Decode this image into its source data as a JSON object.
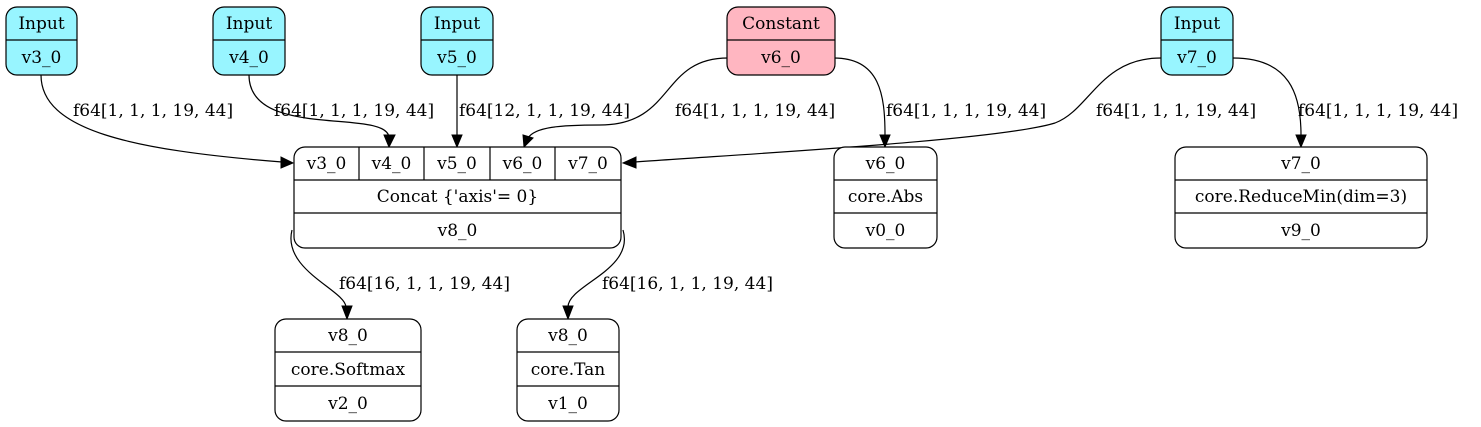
{
  "colors": {
    "input_fill": "#98f5ff",
    "constant_fill": "#ffb6c1",
    "op_fill": "#ffffff",
    "stroke": "#000000"
  },
  "inputs": {
    "v3": {
      "kind": "Input",
      "name": "v3_0"
    },
    "v4": {
      "kind": "Input",
      "name": "v4_0"
    },
    "v5": {
      "kind": "Input",
      "name": "v5_0"
    },
    "v6": {
      "kind": "Constant",
      "name": "v6_0"
    },
    "v7": {
      "kind": "Input",
      "name": "v7_0"
    }
  },
  "concat": {
    "ports": [
      "v3_0",
      "v4_0",
      "v5_0",
      "v6_0",
      "v7_0"
    ],
    "op": "Concat {'axis'= 0}",
    "out": "v8_0"
  },
  "abs": {
    "in": "v6_0",
    "op": "core.Abs",
    "out": "v0_0"
  },
  "reducemin": {
    "in": "v7_0",
    "op": "core.ReduceMin(dim=3)",
    "out": "v9_0"
  },
  "softmax": {
    "in": "v8_0",
    "op": "core.Softmax",
    "out": "v2_0"
  },
  "tan": {
    "in": "v8_0",
    "op": "core.Tan",
    "out": "v1_0"
  },
  "edge_labels": {
    "v3_concat": "f64[1, 1, 1, 19, 44]",
    "v4_concat": "f64[1, 1, 1, 19, 44]",
    "v5_concat": "f64[12, 1, 1, 19, 44]",
    "v6_concat": "f64[1, 1, 1, 19, 44]",
    "v6_abs": "f64[1, 1, 1, 19, 44]",
    "v7_concat": "f64[1, 1, 1, 19, 44]",
    "v7_reducemin": "f64[1, 1, 1, 19, 44]",
    "concat_softmax": "f64[16, 1, 1, 19, 44]",
    "concat_tan": "f64[16, 1, 1, 19, 44]"
  }
}
